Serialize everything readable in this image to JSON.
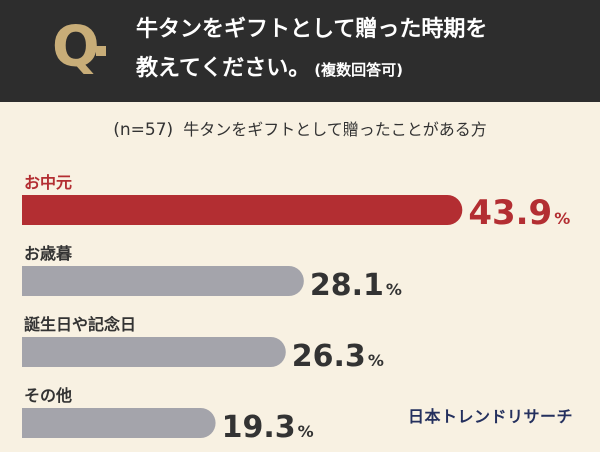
{
  "header": {
    "q_mark": "Q",
    "question_line1": "牛タンをギフトとして贈った時期を",
    "question_line2": "教えてください。",
    "question_note": "(複数回答可)"
  },
  "sample": {
    "n_label": "(n=57)",
    "description": "牛タンをギフトとして贈ったことがある方"
  },
  "brand": {
    "logo_text": "日本トレンドリサーチ"
  },
  "colors": {
    "highlight": "#b32e32",
    "bar_default": "#a4a4ab",
    "text": "#333333",
    "header_bg": "#2d2d2d",
    "q_gold": "#c8ad78",
    "background": "#f8f1e2"
  },
  "chart_data": {
    "type": "bar",
    "orientation": "horizontal",
    "title": "",
    "xlabel": "",
    "ylabel": "",
    "unit": "%",
    "categories": [
      "お中元",
      "お歳暮",
      "誕生日や記念日",
      "その他"
    ],
    "values": [
      43.9,
      28.1,
      26.3,
      19.3
    ],
    "highlight_index": 0,
    "xlim": [
      0,
      100
    ],
    "grid": false,
    "legend": "none"
  }
}
